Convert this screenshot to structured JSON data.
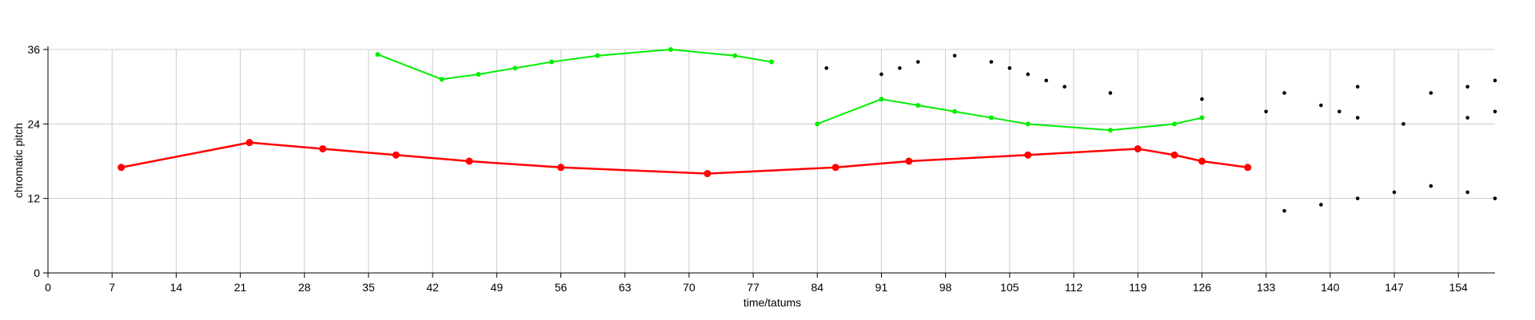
{
  "chart_data": {
    "type": "scatter",
    "xlabel": "time/tatums",
    "ylabel": "chromatic pitch",
    "xlim": [
      0,
      158
    ],
    "ylim": [
      0,
      36
    ],
    "grid": true,
    "x_ticks": [
      0,
      7,
      14,
      21,
      28,
      35,
      42,
      49,
      56,
      63,
      70,
      77,
      84,
      91,
      98,
      105,
      112,
      119,
      126,
      133,
      140,
      147,
      154
    ],
    "y_ticks": [
      0,
      12,
      24,
      36
    ],
    "colors": {
      "red": "#ff0000",
      "green": "#00ee00",
      "black": "#000000",
      "grid": "#cccccc"
    },
    "series": [
      {
        "color": "red",
        "mode": "line",
        "points": [
          [
            8,
            17
          ],
          [
            22,
            21
          ],
          [
            30,
            20
          ],
          [
            38,
            19
          ],
          [
            46,
            18
          ],
          [
            56,
            17
          ],
          [
            72,
            16
          ],
          [
            86,
            17
          ],
          [
            94,
            18
          ],
          [
            107,
            19
          ],
          [
            119,
            20
          ],
          [
            123,
            19
          ],
          [
            126,
            18
          ],
          [
            131,
            17
          ]
        ]
      },
      {
        "color": "green",
        "mode": "line",
        "points": [
          [
            36,
            35.2
          ],
          [
            43,
            31.2
          ],
          [
            47,
            32
          ],
          [
            51,
            33
          ],
          [
            55,
            34
          ],
          [
            60,
            35
          ],
          [
            68,
            36
          ],
          [
            75,
            35
          ],
          [
            79,
            34
          ]
        ]
      },
      {
        "color": "green",
        "mode": "line",
        "points": [
          [
            84,
            24
          ],
          [
            91,
            28
          ],
          [
            95,
            27
          ],
          [
            99,
            26
          ],
          [
            103,
            25
          ],
          [
            107,
            24
          ],
          [
            116,
            23
          ],
          [
            123,
            24
          ],
          [
            126,
            25
          ]
        ]
      },
      {
        "color": "black",
        "mode": "markers",
        "points": [
          [
            85,
            33
          ],
          [
            91,
            32
          ],
          [
            93,
            33
          ],
          [
            95,
            34
          ],
          [
            99,
            35
          ],
          [
            103,
            34
          ],
          [
            105,
            33
          ],
          [
            107,
            32
          ],
          [
            109,
            31
          ],
          [
            111,
            30
          ],
          [
            116,
            29
          ],
          [
            126,
            28
          ],
          [
            133,
            26
          ],
          [
            135,
            29
          ],
          [
            135,
            10
          ],
          [
            139,
            27
          ],
          [
            139,
            11
          ],
          [
            141,
            26
          ],
          [
            143,
            30
          ],
          [
            143,
            25
          ],
          [
            143,
            12
          ],
          [
            147,
            13
          ],
          [
            148,
            24
          ],
          [
            151,
            29
          ],
          [
            151,
            14
          ],
          [
            155,
            30
          ],
          [
            155,
            25
          ],
          [
            155,
            13
          ],
          [
            158,
            31
          ],
          [
            158,
            26
          ],
          [
            158,
            12
          ]
        ]
      }
    ]
  }
}
